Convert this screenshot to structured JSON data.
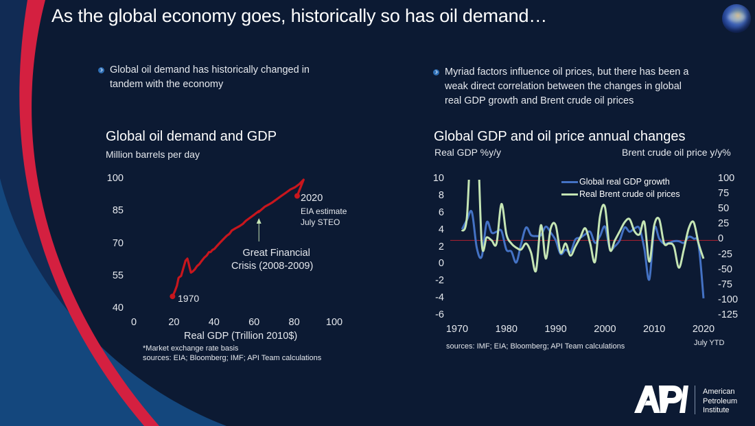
{
  "page": {
    "title": "As the global economy goes, historically so has oil demand…",
    "bullets": [
      {
        "lines": [
          "Global oil demand has historically changed in",
          "tandem with the economy"
        ]
      },
      {
        "lines": [
          "Myriad factors influence oil prices, but there has been a",
          "weak direct correlation between the changes in global",
          "real GDP growth and Brent crude oil prices"
        ]
      }
    ],
    "icons": {
      "globe": "earth-globe-icon",
      "bullet": "circled-chevron-icon"
    },
    "colors": {
      "background": "#0c1a33",
      "accent_red": "#d42040",
      "accent_blue": "#14477d",
      "gdp_line": "#4472c4",
      "oil_line": "#c5e5b4",
      "demand_line": "#c8161d",
      "zero_line": "#a02030"
    },
    "logo": {
      "mark": "API",
      "lines": [
        "American",
        "Petroleum",
        "Institute"
      ]
    }
  },
  "chart_data": [
    {
      "type": "line",
      "title": "Global oil demand and GDP",
      "ylabel": "Million barrels per day",
      "xlabel": "Real GDP (Trillion 2010$)",
      "xlim": [
        0,
        100
      ],
      "ylim": [
        40,
        100
      ],
      "xticks": [
        "0",
        "20",
        "40",
        "60",
        "80",
        "100"
      ],
      "yticks": [
        "100",
        "85",
        "70",
        "55",
        "40"
      ],
      "grid": false,
      "footnotes": [
        "*Market exchange rate basis",
        "sources:  EIA; Bloomberg; IMF; API Team calculations"
      ],
      "annotations": {
        "start": "1970",
        "end_year": "2020",
        "end_note": [
          "EIA estimate",
          "July STEO"
        ],
        "gfc": [
          "Great Financial",
          "Crisis (2008-2009)"
        ]
      },
      "series": [
        {
          "name": "Oil demand vs real GDP",
          "x": [
            19.3,
            20.5,
            21.5,
            22.3,
            22.8,
            23.6,
            24.7,
            25.8,
            26.7,
            27.3,
            27.8,
            28.5,
            29.3,
            30.4,
            31.5,
            32.7,
            33.9,
            35.2,
            36.4,
            37.5,
            38.3,
            39.2,
            40.2,
            41.6,
            43.1,
            44.7,
            46.3,
            47.7,
            48.9,
            50.7,
            52.7,
            54.3,
            55.9,
            58.1,
            60.3,
            62.4,
            62.2,
            65.3,
            67.3,
            69.1,
            71.3,
            73.6,
            75.9,
            78.1,
            80.4,
            82.6,
            84.7,
            81.5
          ],
          "y": [
            46.0,
            48.5,
            51.0,
            54.5,
            55.0,
            55.5,
            59.0,
            62.5,
            63.5,
            61.5,
            59.5,
            57.0,
            57.5,
            58.5,
            60.0,
            61.0,
            62.5,
            64.0,
            65.0,
            66.5,
            66.5,
            67.5,
            68.0,
            69.5,
            71.0,
            72.5,
            74.0,
            75.0,
            76.5,
            77.5,
            78.5,
            79.5,
            81.0,
            82.5,
            84.0,
            85.5,
            85.0,
            87.5,
            88.5,
            89.5,
            91.0,
            92.5,
            94.0,
            95.5,
            96.5,
            98.0,
            100.0,
            92.5
          ]
        }
      ]
    },
    {
      "type": "line",
      "title": "Global GDP and oil price annual changes",
      "ylabel": "Real GDP %y/y",
      "y2label": "Brent crude oil price y/y%",
      "xticks": [
        "1970",
        "1980",
        "1990",
        "2000",
        "2010",
        "2020"
      ],
      "xtick_note": "July YTD",
      "yticks": [
        "10",
        "8",
        "6",
        "4",
        "2",
        "0",
        "-2",
        "-4",
        "-6"
      ],
      "y2ticks": [
        "100",
        "75",
        "50",
        "25",
        "0",
        "-25",
        "-50",
        "-75",
        "-100",
        "-125"
      ],
      "xlim": [
        1970,
        2020
      ],
      "ylim": [
        -6,
        10
      ],
      "y2lim": [
        -125,
        100
      ],
      "grid": false,
      "legend": "top-center",
      "reference_line": {
        "axis": "y2",
        "value": 0
      },
      "footnote": "sources:  IMF; EIA; Bloomberg; API Team calculations",
      "x": [
        1971,
        1972,
        1973,
        1974,
        1975,
        1976,
        1977,
        1978,
        1979,
        1980,
        1981,
        1982,
        1983,
        1984,
        1985,
        1986,
        1987,
        1988,
        1989,
        1990,
        1991,
        1992,
        1993,
        1994,
        1995,
        1996,
        1997,
        1998,
        1999,
        2000,
        2001,
        2002,
        2003,
        2004,
        2005,
        2006,
        2007,
        2008,
        2009,
        2010,
        2011,
        2012,
        2013,
        2014,
        2015,
        2016,
        2017,
        2018,
        2019,
        2020
      ],
      "series": [
        {
          "name": "Global real GDP growth",
          "axis": "y",
          "values": [
            4.2,
            5.3,
            6.2,
            2.0,
            1.0,
            5.0,
            3.8,
            3.9,
            4.0,
            1.8,
            1.6,
            0.3,
            2.5,
            4.4,
            3.5,
            3.4,
            3.5,
            4.5,
            3.8,
            2.9,
            1.3,
            1.8,
            1.5,
            3.0,
            3.2,
            3.6,
            3.9,
            2.6,
            3.4,
            4.5,
            1.9,
            2.2,
            2.9,
            4.4,
            3.9,
            4.3,
            4.3,
            1.9,
            -1.7,
            4.3,
            3.1,
            2.5,
            2.6,
            2.8,
            2.8,
            2.6,
            3.3,
            3.1,
            2.4,
            -3.9
          ]
        },
        {
          "name": "Real Brent crude oil prices",
          "axis": "y2",
          "values": [
            15,
            40,
            200,
            200,
            -5,
            5,
            0,
            -5,
            60,
            10,
            -5,
            -12,
            -15,
            -5,
            -20,
            -50,
            25,
            -30,
            20,
            25,
            -20,
            -5,
            -25,
            -10,
            5,
            20,
            -5,
            -35,
            40,
            55,
            -15,
            0,
            15,
            30,
            35,
            15,
            10,
            30,
            -35,
            25,
            35,
            -5,
            -5,
            -10,
            -45,
            -15,
            20,
            30,
            -5,
            -30
          ]
        }
      ]
    }
  ]
}
